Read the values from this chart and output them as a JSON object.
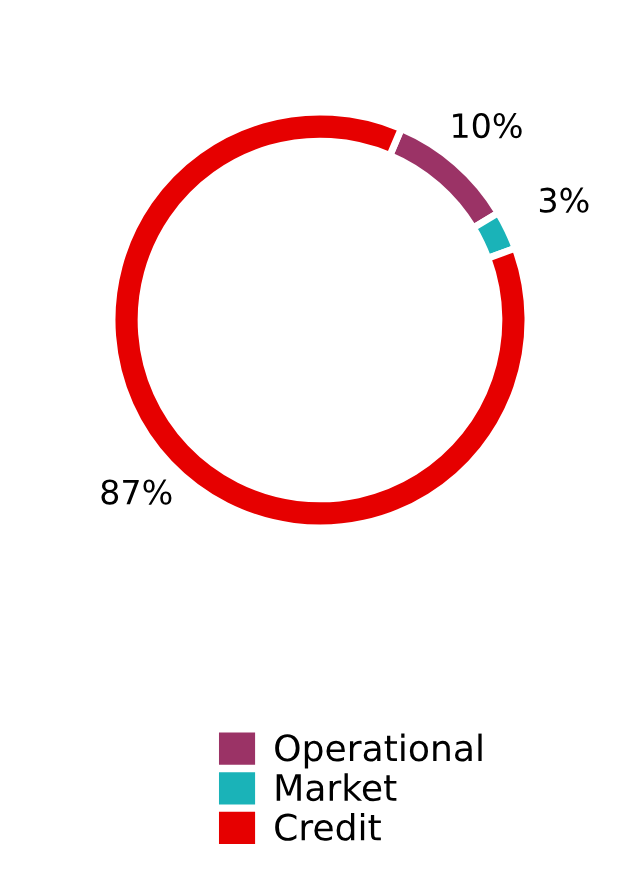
{
  "chart_data": {
    "type": "donut",
    "categories": [
      "Operational",
      "Market",
      "Credit"
    ],
    "values": [
      10,
      3,
      87
    ],
    "colors": [
      "#9b3366",
      "#1ab3b8",
      "#e60000"
    ],
    "value_labels": [
      "10%",
      "3%",
      "87%"
    ],
    "legend": "bottom"
  }
}
